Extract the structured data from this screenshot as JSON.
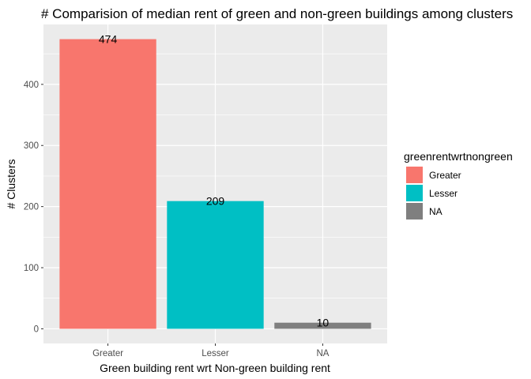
{
  "chart_data": {
    "type": "bar",
    "title": "# Comparision of median rent of green and non-green buildings among clusters",
    "xlabel": "Green building rent wrt Non-green building rent",
    "ylabel": "# Clusters",
    "categories": [
      "Greater",
      "Lesser",
      "NA"
    ],
    "values": [
      474,
      209,
      10
    ],
    "data_labels": [
      "474",
      "209",
      "10"
    ],
    "colors": [
      "#F8766D",
      "#00BFC4",
      "#7F7F7F"
    ],
    "ylim": [
      -24,
      498
    ],
    "yticks": [
      0,
      100,
      200,
      300,
      400
    ],
    "grid": true,
    "legend": {
      "title": "greenrentwrtnongreen",
      "position": "right",
      "entries": [
        {
          "label": "Greater",
          "color": "#F8766D"
        },
        {
          "label": "Lesser",
          "color": "#00BFC4"
        },
        {
          "label": "NA",
          "color": "#7F7F7F"
        }
      ]
    }
  }
}
